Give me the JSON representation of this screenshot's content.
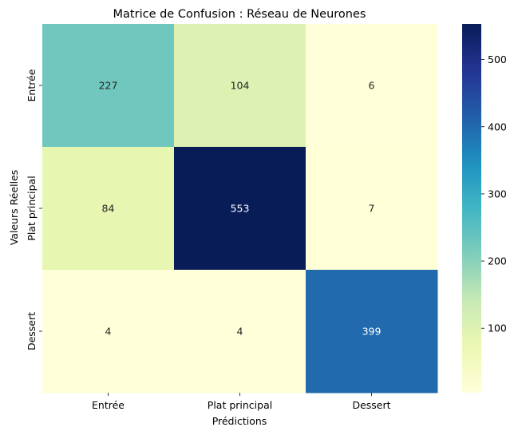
{
  "chart_data": {
    "type": "heatmap",
    "title": "Matrice de Confusion : Réseau de Neurones",
    "xlabel": "Prédictions",
    "ylabel": "Valeurs Réelles",
    "x_categories": [
      "Entrée",
      "Plat principal",
      "Dessert"
    ],
    "y_categories": [
      "Entrée",
      "Plat principal",
      "Dessert"
    ],
    "values": [
      [
        227,
        104,
        6
      ],
      [
        84,
        553,
        7
      ],
      [
        4,
        4,
        399
      ]
    ],
    "colormap": "YlGnBu",
    "colorbar": {
      "min": 4,
      "max": 553,
      "ticks": [
        100,
        200,
        300,
        400,
        500
      ]
    },
    "colors": {
      "dark_text": "#262626",
      "light_text": "#ffffff"
    }
  }
}
